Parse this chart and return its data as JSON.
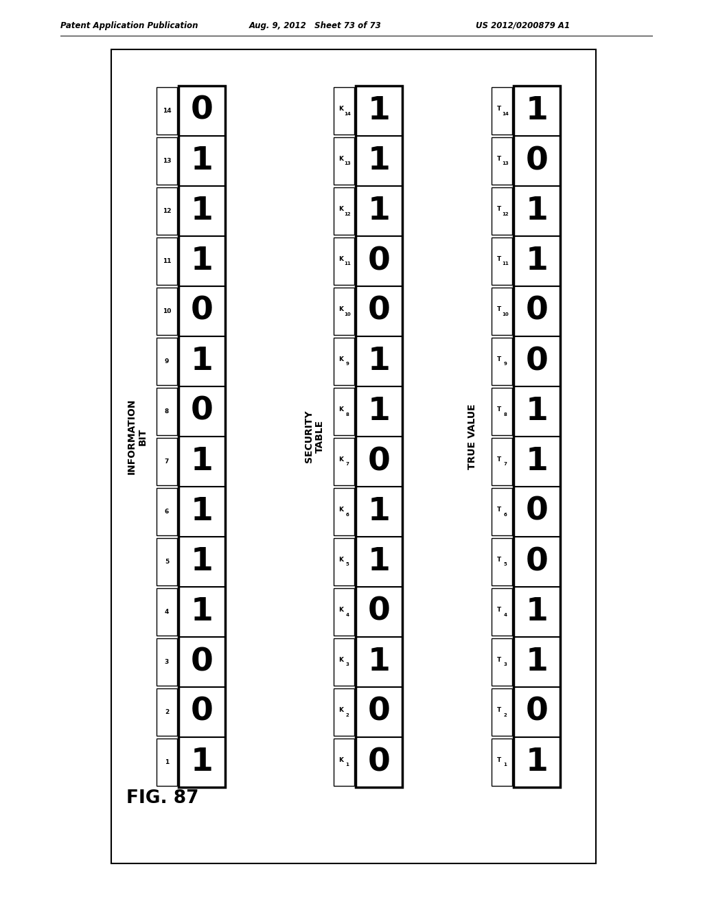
{
  "num_cols": 14,
  "info_indices": [
    "1",
    "2",
    "3",
    "4",
    "5",
    "6",
    "7",
    "8",
    "9",
    "10",
    "11",
    "12",
    "13",
    "14"
  ],
  "info_values": [
    "1",
    "0",
    "0",
    "1",
    "1",
    "1",
    "1",
    "0",
    "1",
    "0",
    "1",
    "1",
    "1",
    "0"
  ],
  "security_indices": [
    "K1",
    "K2",
    "K3",
    "K4",
    "K5",
    "K6",
    "K7",
    "K8",
    "K9",
    "K10",
    "K11",
    "K12",
    "K13",
    "K14"
  ],
  "security_values": [
    "0",
    "0",
    "1",
    "0",
    "1",
    "1",
    "0",
    "1",
    "1",
    "0",
    "0",
    "1",
    "1",
    "1"
  ],
  "true_indices": [
    "T1",
    "T2",
    "T3",
    "T4",
    "T5",
    "T6",
    "T7",
    "T8",
    "T9",
    "T10",
    "T11",
    "T12",
    "T13",
    "T14"
  ],
  "true_values": [
    "1",
    "0",
    "1",
    "1",
    "0",
    "0",
    "1",
    "1",
    "0",
    "0",
    "1",
    "1",
    "0",
    "1"
  ],
  "info_label": "INFORMATION\nBIT",
  "security_label": "SECURITY\nTABLE",
  "true_label": "TRUE VALUE",
  "header_left": "Patent Application Publication",
  "header_mid": "Aug. 9, 2012   Sheet 73 of 73",
  "header_right": "US 2012/0200879 A1",
  "fig_label": "FIG. 87"
}
